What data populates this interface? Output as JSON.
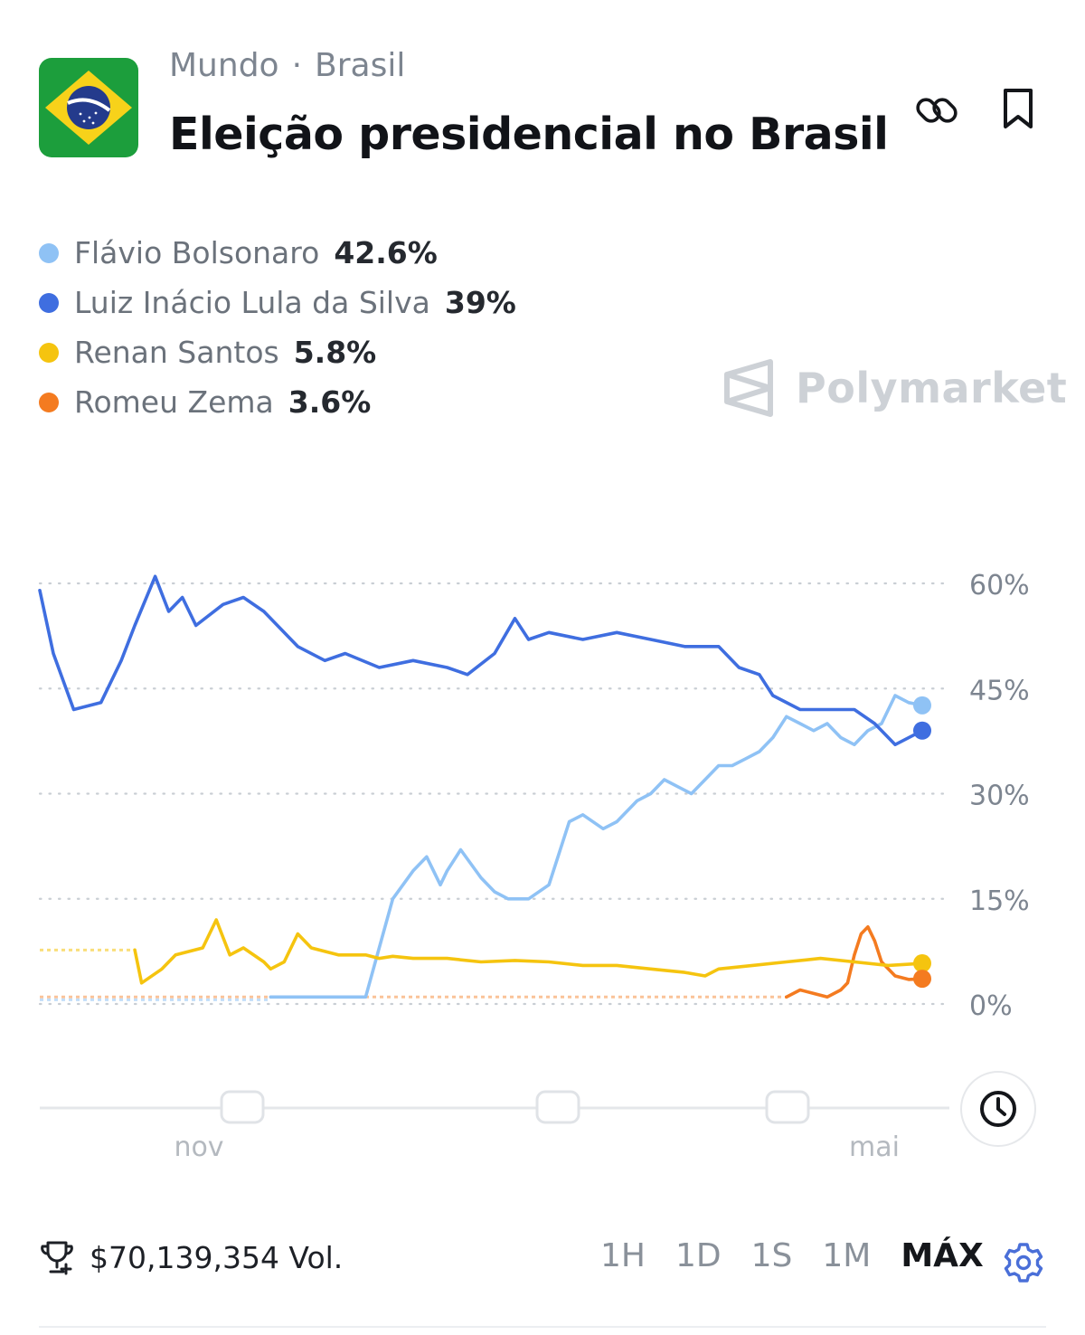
{
  "header": {
    "breadcrumb": [
      "Mundo",
      "Brasil"
    ],
    "title": "Eleição presidencial no Brasil",
    "flag_icon": "brazil-flag-icon",
    "actions": [
      "link-icon",
      "bookmark-icon"
    ]
  },
  "legend": [
    {
      "name": "Flávio Bolsonaro",
      "value": "42.6%",
      "color": "#8fc2f5"
    },
    {
      "name": "Luiz Inácio Lula da Silva",
      "value": "39%",
      "color": "#3f6ee0"
    },
    {
      "name": "Renan Santos",
      "value": "5.8%",
      "color": "#f5c40f"
    },
    {
      "name": "Romeu Zema",
      "value": "3.6%",
      "color": "#f47b20"
    }
  ],
  "watermark": "Polymarket",
  "chart_data": {
    "type": "line",
    "x_labels": [
      "nov",
      "mai"
    ],
    "y_ticks": [
      "60%",
      "45%",
      "30%",
      "15%",
      "0%"
    ],
    "ylim": [
      0,
      60
    ],
    "grid": true,
    "series": [
      {
        "name": "Luiz Inácio Lula da Silva",
        "color": "#3f6ee0",
        "x": [
          0,
          2,
          5,
          9,
          12,
          14,
          17,
          19,
          21,
          23,
          27,
          30,
          33,
          38,
          42,
          45,
          50,
          55,
          60,
          63,
          67,
          70,
          72,
          75,
          80,
          85,
          90,
          95,
          100,
          103,
          106,
          108,
          112,
          116,
          120,
          123,
          126,
          130
        ],
        "y": [
          59,
          50,
          42,
          43,
          49,
          54,
          61,
          56,
          58,
          54,
          57,
          58,
          56,
          51,
          49,
          50,
          48,
          49,
          48,
          47,
          50,
          55,
          52,
          53,
          52,
          53,
          52,
          51,
          51,
          48,
          47,
          44,
          42,
          42,
          42,
          40,
          37,
          39
        ]
      },
      {
        "name": "Flávio Bolsonaro",
        "color": "#8fc2f5",
        "x": [
          34,
          38,
          40,
          42,
          45,
          48,
          50,
          52,
          55,
          57,
          59,
          60,
          62,
          65,
          67,
          69,
          72,
          75,
          78,
          80,
          83,
          85,
          88,
          90,
          92,
          94,
          96,
          98,
          100,
          102,
          104,
          106,
          108,
          110,
          112,
          114,
          116,
          118,
          120,
          122,
          124,
          126,
          128,
          130
        ],
        "y": [
          1,
          1,
          1,
          1,
          1,
          1,
          8,
          15,
          19,
          21,
          17,
          19,
          22,
          18,
          16,
          15,
          15,
          17,
          26,
          27,
          25,
          26,
          29,
          30,
          32,
          31,
          30,
          32,
          34,
          34,
          35,
          36,
          38,
          41,
          40,
          39,
          40,
          38,
          37,
          39,
          40,
          44,
          43,
          42.6
        ]
      },
      {
        "name": "Renan Santos",
        "color": "#f5c40f",
        "x": [
          0,
          14,
          15,
          18,
          20,
          24,
          26,
          28,
          30,
          33,
          34,
          36,
          38,
          40,
          44,
          48,
          50,
          52,
          55,
          60,
          65,
          70,
          75,
          80,
          85,
          90,
          95,
          98,
          100,
          105,
          110,
          115,
          120,
          125,
          130
        ],
        "y": [
          7.7,
          7.7,
          3,
          5,
          7,
          8,
          12,
          7,
          8,
          6,
          5,
          6,
          10,
          8,
          7,
          7,
          6.5,
          6.8,
          6.5,
          6.5,
          6,
          6.2,
          6,
          5.5,
          5.5,
          5,
          4.5,
          4,
          5,
          5.5,
          6,
          6.5,
          6,
          5.5,
          5.8
        ]
      },
      {
        "name": "Romeu Zema",
        "color": "#f47b20",
        "x": [
          0,
          110,
          112,
          114,
          116,
          118,
          119,
          120,
          121,
          122,
          123,
          124,
          125,
          126,
          128,
          130
        ],
        "y": [
          1,
          1,
          2,
          1.5,
          1,
          2,
          3,
          7,
          10,
          11,
          9,
          6,
          5,
          4,
          3.5,
          3.6
        ]
      }
    ]
  },
  "volume": {
    "label": "$70,139,354 Vol.",
    "icon": "trophy-icon"
  },
  "time_ranges": [
    "1H",
    "1D",
    "1S",
    "1M",
    "MÁX"
  ],
  "active_range": "MÁX",
  "settings_icon": "gear-icon",
  "history_icon": "clock-icon"
}
